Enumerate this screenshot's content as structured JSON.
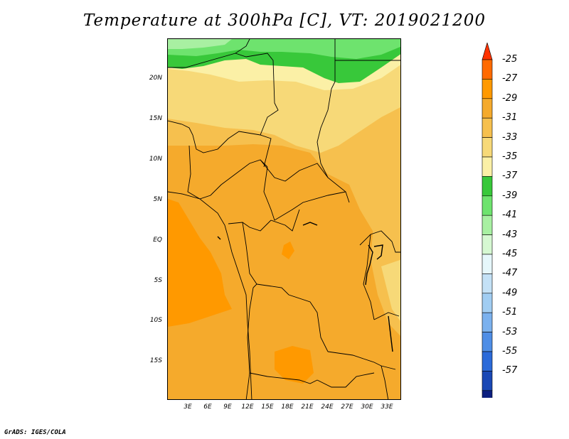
{
  "title": "Temperature at 300hPa [C], VT: 2019021200",
  "credit": "GrADS: IGES/COLA",
  "map": {
    "lat_labels": [
      "20N",
      "15N",
      "10N",
      "5N",
      "EQ",
      "5S",
      "10S",
      "15S"
    ],
    "lon_labels": [
      "3E",
      "6E",
      "9E",
      "12E",
      "15E",
      "18E",
      "21E",
      "24E",
      "27E",
      "30E",
      "33E"
    ]
  },
  "colorbar": {
    "levels": [
      "-25",
      "-27",
      "-29",
      "-31",
      "-33",
      "-35",
      "-37",
      "-39",
      "-41",
      "-43",
      "-45",
      "-47",
      "-49",
      "-51",
      "-53",
      "-55",
      "-57"
    ],
    "colors": [
      "#ff3300",
      "#ff6a00",
      "#ff9900",
      "#f5aa2c",
      "#f6c04e",
      "#f7d978",
      "#fbf0a6",
      "#38c83a",
      "#6ee36e",
      "#a8f0a2",
      "#d6f8d2",
      "#e6f7fb",
      "#c4e1f6",
      "#a1cdf2",
      "#7bb1ee",
      "#4f8ee6",
      "#2b6ad9",
      "#1a48b5",
      "#0c1f80",
      "#e4e4f5"
    ]
  }
}
